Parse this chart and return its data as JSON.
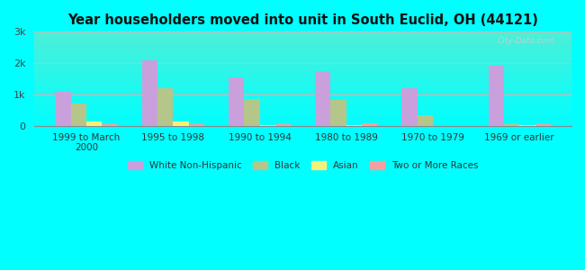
{
  "title": "Year householders moved into unit in South Euclid, OH (44121)",
  "categories": [
    "1999 to March\n2000",
    "1995 to 1998",
    "1990 to 1994",
    "1980 to 1989",
    "1970 to 1979",
    "1969 or earlier"
  ],
  "series": {
    "White Non-Hispanic": [
      1100,
      2100,
      1560,
      1760,
      1200,
      1920
    ],
    "Black": [
      720,
      1200,
      860,
      840,
      340,
      50
    ],
    "Asian": [
      140,
      140,
      20,
      20,
      0,
      20
    ],
    "Two or More Races": [
      60,
      60,
      70,
      90,
      0,
      70
    ]
  },
  "colors": {
    "White Non-Hispanic": "#c9a0dc",
    "Black": "#b5c68a",
    "Asian": "#f5f07a",
    "Two or More Races": "#f4a0a0"
  },
  "ylim": [
    0,
    3000
  ],
  "yticks": [
    0,
    1000,
    2000,
    3000
  ],
  "ytick_labels": [
    "0",
    "1k",
    "2k",
    "3k"
  ],
  "background_color": "#00ffff",
  "bar_width": 0.18,
  "watermark": "City-Data.com"
}
